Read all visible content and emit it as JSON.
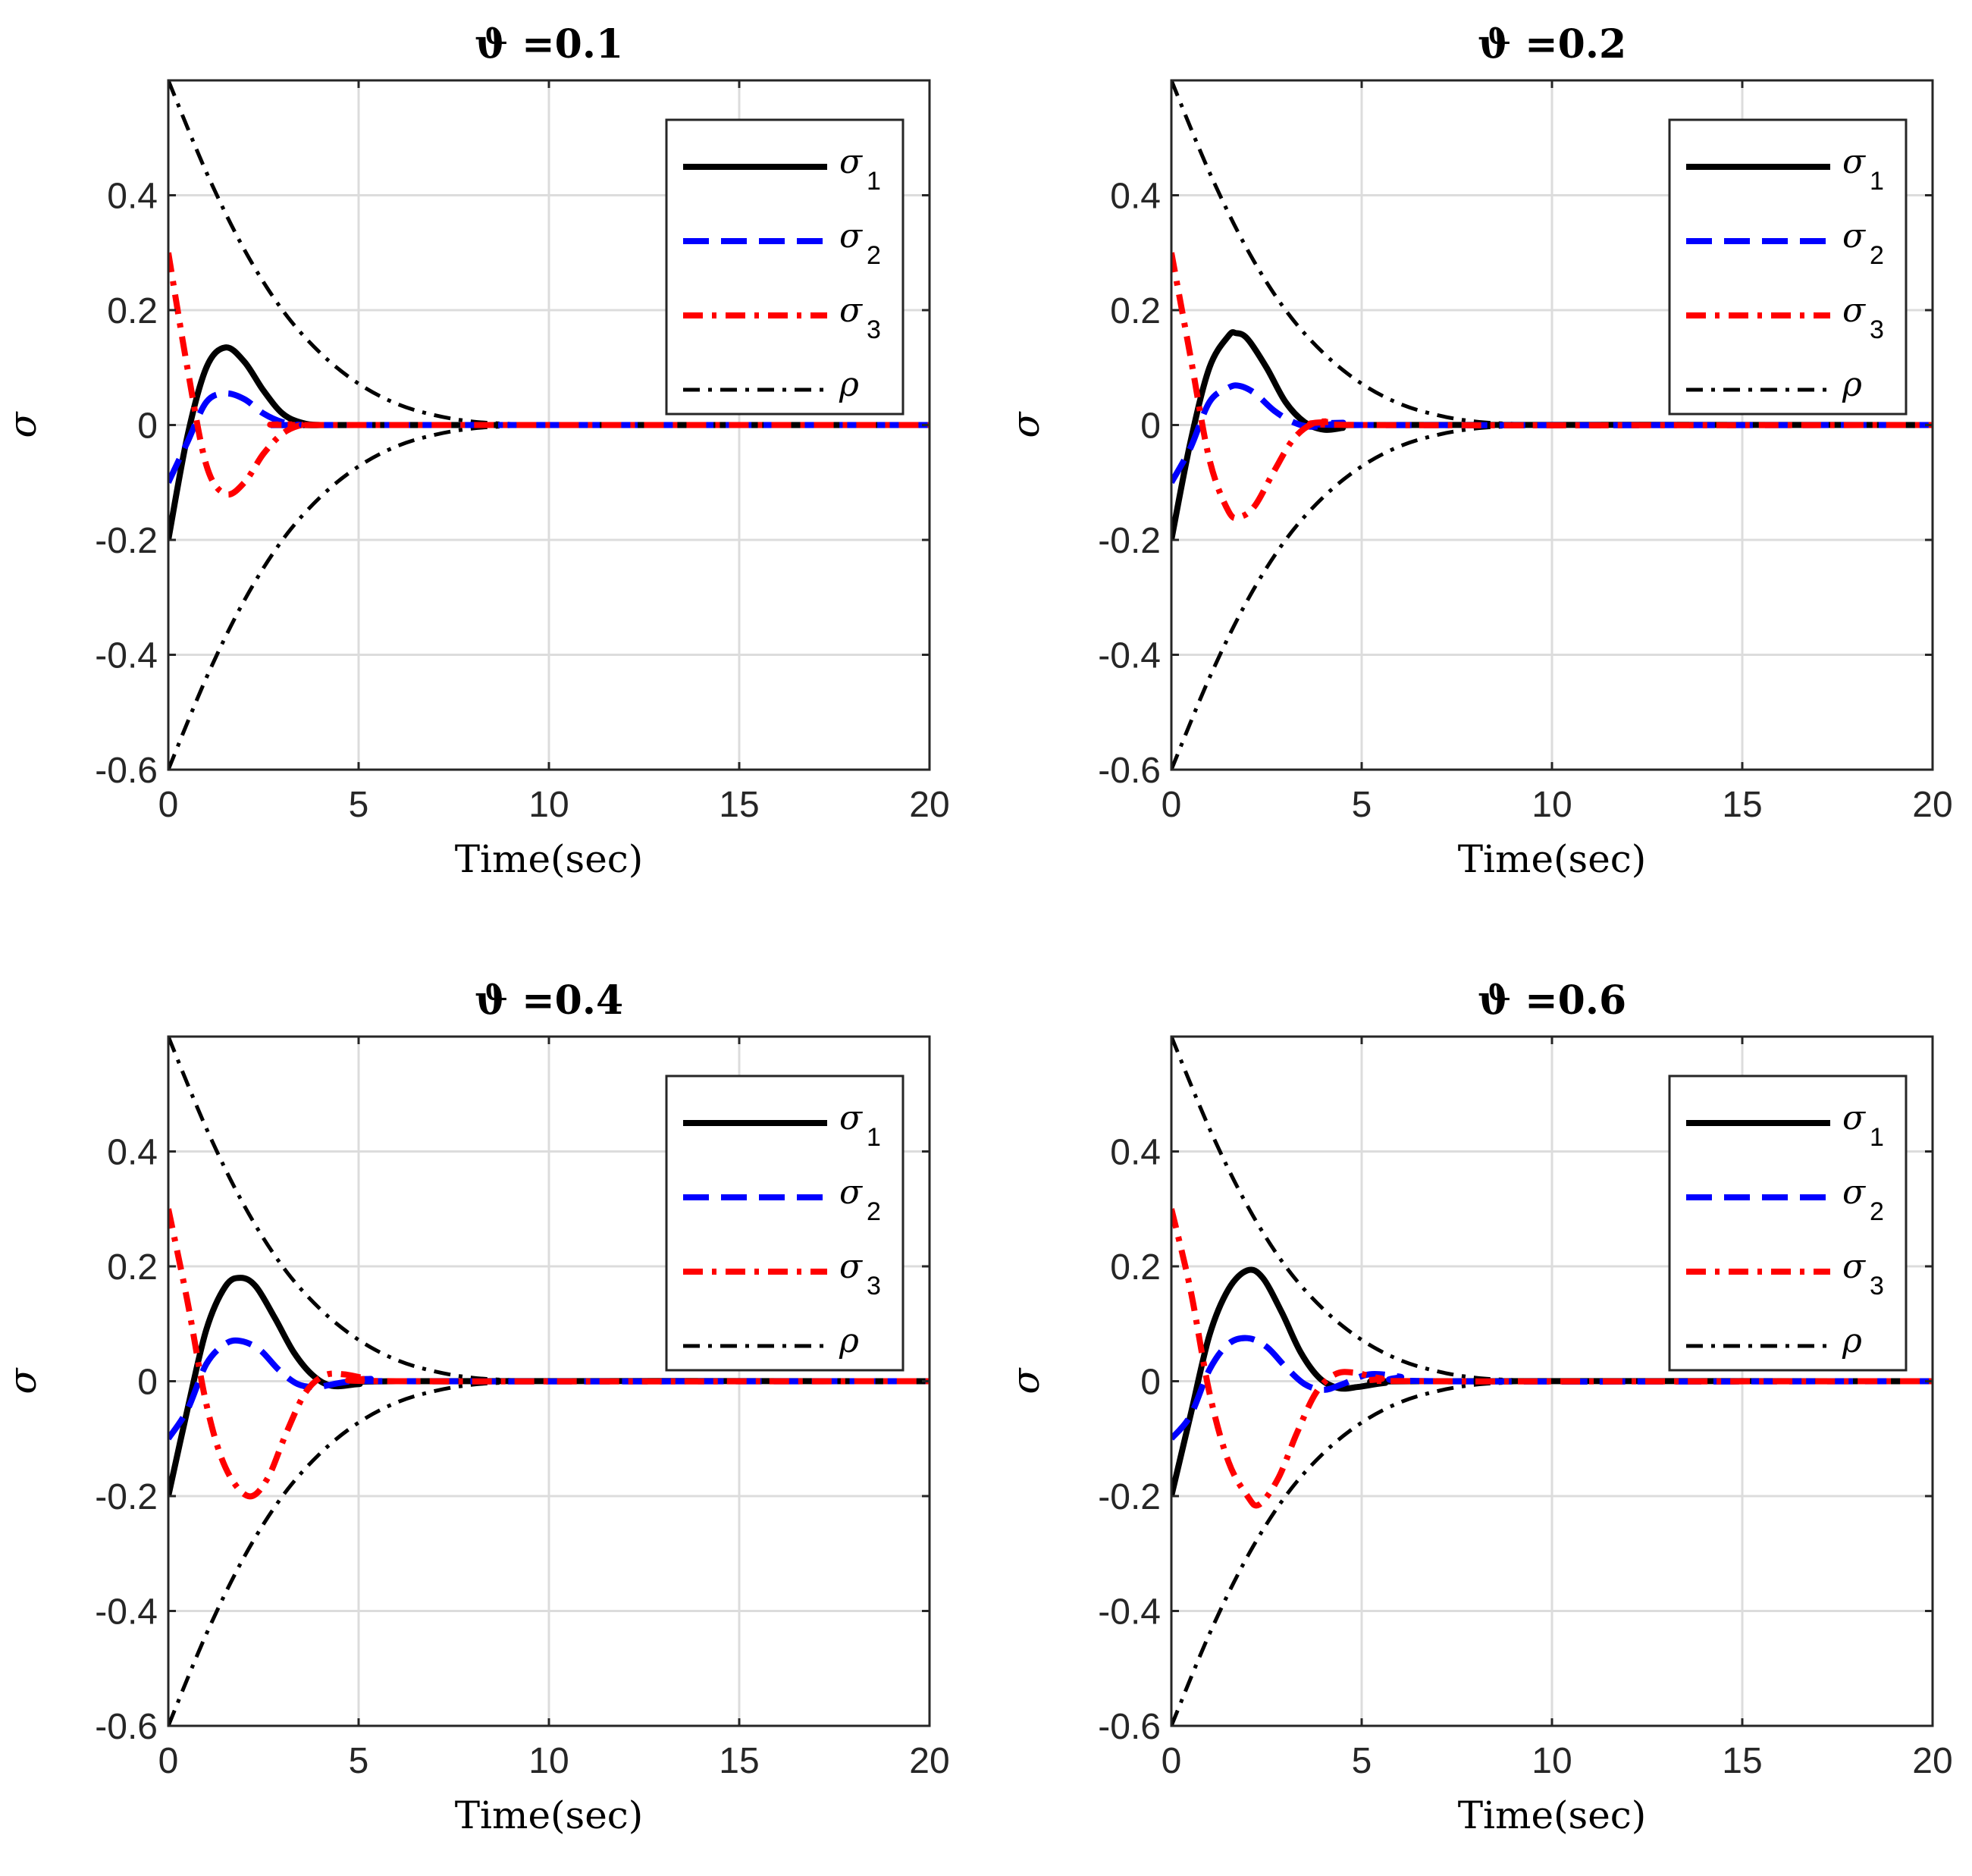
{
  "chart_data": [
    {
      "type": "line",
      "title": "ϑ =0.1",
      "xlabel": "Time(sec)",
      "ylabel": "σ",
      "xlim": [
        0,
        20
      ],
      "ylim": [
        -0.6,
        0.6
      ],
      "xticks": [
        0,
        5,
        10,
        15,
        20
      ],
      "xtick_labels": [
        "0",
        "5",
        "10",
        "15",
        "20"
      ],
      "yticks": [
        -0.6,
        -0.4,
        -0.2,
        0,
        0.2,
        0.4
      ],
      "ytick_labels": [
        "-0.6",
        "-0.4",
        "-0.2",
        "0",
        "0.2",
        "0.4"
      ],
      "grid": true,
      "legend_position": "top-right",
      "series": [
        {
          "name": "σ1",
          "label": "σ",
          "sub": "1",
          "color": "#000000",
          "style": "solid",
          "x": [
            0,
            0.5,
            1,
            1.5,
            2,
            2.5,
            3,
            3.5,
            4,
            5,
            20
          ],
          "y": [
            -0.2,
            -0.02,
            0.1,
            0.135,
            0.11,
            0.06,
            0.02,
            0.004,
            0,
            0,
            0
          ]
        },
        {
          "name": "σ2",
          "label": "σ",
          "sub": "2",
          "color": "#0000ff",
          "style": "dashed",
          "x": [
            0,
            0.5,
            1,
            1.5,
            2,
            2.5,
            3,
            3.5,
            4,
            20
          ],
          "y": [
            -0.1,
            -0.03,
            0.04,
            0.055,
            0.045,
            0.02,
            0.005,
            0,
            0,
            0
          ]
        },
        {
          "name": "σ3",
          "label": "σ",
          "sub": "3",
          "color": "#ff0000",
          "style": "dashdot",
          "x": [
            0,
            0.5,
            1,
            1.5,
            2,
            2.5,
            3,
            3.5,
            4,
            20
          ],
          "y": [
            0.3,
            0.1,
            -0.07,
            -0.12,
            -0.1,
            -0.05,
            -0.015,
            0,
            0,
            0
          ]
        },
        {
          "name": "ρ",
          "label": "ρ",
          "sub": "",
          "color": "#000000",
          "style": "dashdot-thin",
          "x": [
            0,
            1,
            2,
            3,
            4,
            5,
            6,
            7,
            8,
            9,
            10,
            20
          ],
          "y": [
            0.6,
            0.44,
            0.305,
            0.2,
            0.125,
            0.072,
            0.037,
            0.017,
            0.006,
            0.002,
            0,
            0
          ],
          "mirror": true
        }
      ]
    },
    {
      "type": "line",
      "title": "ϑ =0.2",
      "xlabel": "Time(sec)",
      "ylabel": "σ",
      "xlim": [
        0,
        20
      ],
      "ylim": [
        -0.6,
        0.6
      ],
      "xticks": [
        0,
        5,
        10,
        15,
        20
      ],
      "xtick_labels": [
        "0",
        "5",
        "10",
        "15",
        "20"
      ],
      "yticks": [
        -0.6,
        -0.4,
        -0.2,
        0,
        0.2,
        0.4
      ],
      "ytick_labels": [
        "-0.6",
        "-0.4",
        "-0.2",
        "0",
        "0.2",
        "0.4"
      ],
      "grid": true,
      "legend_position": "top-right",
      "series": [
        {
          "name": "σ1",
          "label": "σ",
          "sub": "1",
          "color": "#000000",
          "style": "solid",
          "x": [
            0,
            0.5,
            1,
            1.5,
            1.7,
            2,
            2.5,
            3,
            3.5,
            4,
            4.5,
            5,
            20
          ],
          "y": [
            -0.2,
            -0.03,
            0.1,
            0.155,
            0.16,
            0.15,
            0.1,
            0.04,
            0.005,
            -0.008,
            -0.005,
            0,
            0
          ]
        },
        {
          "name": "σ2",
          "label": "σ",
          "sub": "2",
          "color": "#0000ff",
          "style": "dashed",
          "x": [
            0,
            0.5,
            1,
            1.5,
            1.8,
            2.2,
            2.7,
            3.2,
            3.7,
            4.5,
            5,
            20
          ],
          "y": [
            -0.1,
            -0.04,
            0.04,
            0.065,
            0.068,
            0.055,
            0.025,
            0.005,
            -0.003,
            0.004,
            0,
            0
          ]
        },
        {
          "name": "σ3",
          "label": "σ",
          "sub": "3",
          "color": "#ff0000",
          "style": "dashdot",
          "x": [
            0,
            0.5,
            1,
            1.5,
            1.8,
            2.2,
            2.7,
            3.2,
            3.7,
            4.2,
            5,
            20
          ],
          "y": [
            0.3,
            0.12,
            -0.06,
            -0.15,
            -0.16,
            -0.14,
            -0.08,
            -0.025,
            0.002,
            0.006,
            0,
            0
          ]
        },
        {
          "name": "ρ",
          "label": "ρ",
          "sub": "",
          "color": "#000000",
          "style": "dashdot-thin",
          "x": [
            0,
            1,
            2,
            3,
            4,
            5,
            6,
            7,
            8,
            9,
            10,
            20
          ],
          "y": [
            0.6,
            0.44,
            0.305,
            0.2,
            0.125,
            0.072,
            0.037,
            0.017,
            0.006,
            0.002,
            0,
            0
          ],
          "mirror": true
        }
      ]
    },
    {
      "type": "line",
      "title": "ϑ =0.4",
      "xlabel": "Time(sec)",
      "ylabel": "σ",
      "xlim": [
        0,
        20
      ],
      "ylim": [
        -0.6,
        0.6
      ],
      "xticks": [
        0,
        5,
        10,
        15,
        20
      ],
      "xtick_labels": [
        "0",
        "5",
        "10",
        "15",
        "20"
      ],
      "yticks": [
        -0.6,
        -0.4,
        -0.2,
        0,
        0.2,
        0.4
      ],
      "ytick_labels": [
        "-0.6",
        "-0.4",
        "-0.2",
        "0",
        "0.2",
        "0.4"
      ],
      "grid": true,
      "legend_position": "top-right",
      "series": [
        {
          "name": "σ1",
          "label": "σ",
          "sub": "1",
          "color": "#000000",
          "style": "solid",
          "x": [
            0,
            0.5,
            1,
            1.5,
            1.9,
            2.3,
            2.8,
            3.3,
            3.8,
            4.3,
            5,
            6,
            20
          ],
          "y": [
            -0.2,
            -0.05,
            0.09,
            0.165,
            0.18,
            0.165,
            0.11,
            0.05,
            0.01,
            -0.008,
            -0.005,
            0,
            0
          ]
        },
        {
          "name": "σ2",
          "label": "σ",
          "sub": "2",
          "color": "#0000ff",
          "style": "dashed",
          "x": [
            0,
            0.5,
            1,
            1.5,
            1.9,
            2.4,
            2.9,
            3.4,
            3.9,
            4.5,
            5.3,
            6,
            20
          ],
          "y": [
            -0.1,
            -0.05,
            0.03,
            0.065,
            0.07,
            0.055,
            0.02,
            -0.005,
            -0.01,
            -0.003,
            0.004,
            0,
            0
          ]
        },
        {
          "name": "σ3",
          "label": "σ",
          "sub": "3",
          "color": "#ff0000",
          "style": "dashdot",
          "x": [
            0,
            0.5,
            1,
            1.5,
            2.1,
            2.6,
            3.1,
            3.6,
            4.1,
            4.6,
            5.2,
            6,
            20
          ],
          "y": [
            0.3,
            0.14,
            -0.04,
            -0.15,
            -0.2,
            -0.17,
            -0.09,
            -0.02,
            0.01,
            0.012,
            0.005,
            0,
            0
          ]
        },
        {
          "name": "ρ",
          "label": "ρ",
          "sub": "",
          "color": "#000000",
          "style": "dashdot-thin",
          "x": [
            0,
            1,
            2,
            3,
            4,
            5,
            6,
            7,
            8,
            9,
            10,
            20
          ],
          "y": [
            0.6,
            0.44,
            0.305,
            0.2,
            0.125,
            0.072,
            0.037,
            0.017,
            0.006,
            0.002,
            0,
            0
          ],
          "mirror": true
        }
      ]
    },
    {
      "type": "line",
      "title": "ϑ =0.6",
      "xlabel": "Time(sec)",
      "ylabel": "σ",
      "xlim": [
        0,
        20
      ],
      "ylim": [
        -0.6,
        0.6
      ],
      "xticks": [
        0,
        5,
        10,
        15,
        20
      ],
      "xtick_labels": [
        "0",
        "5",
        "10",
        "15",
        "20"
      ],
      "yticks": [
        -0.6,
        -0.4,
        -0.2,
        0,
        0.2,
        0.4
      ],
      "ytick_labels": [
        "-0.6",
        "-0.4",
        "-0.2",
        "0",
        "0.2",
        "0.4"
      ],
      "grid": true,
      "legend_position": "top-right",
      "series": [
        {
          "name": "σ1",
          "label": "σ",
          "sub": "1",
          "color": "#000000",
          "style": "solid",
          "x": [
            0,
            0.5,
            1,
            1.5,
            2,
            2.4,
            2.9,
            3.4,
            3.9,
            4.4,
            4.9,
            5.6,
            6.5,
            20
          ],
          "y": [
            -0.2,
            -0.06,
            0.08,
            0.16,
            0.193,
            0.18,
            0.12,
            0.05,
            0.005,
            -0.012,
            -0.01,
            -0.003,
            0,
            0
          ]
        },
        {
          "name": "σ2",
          "label": "σ",
          "sub": "2",
          "color": "#0000ff",
          "style": "dashed",
          "x": [
            0,
            0.5,
            1,
            1.5,
            2,
            2.5,
            3,
            3.5,
            4,
            4.5,
            5.2,
            6,
            7,
            20
          ],
          "y": [
            -0.1,
            -0.06,
            0.02,
            0.065,
            0.075,
            0.06,
            0.025,
            -0.005,
            -0.015,
            -0.005,
            0.012,
            0.008,
            0,
            0
          ]
        },
        {
          "name": "σ3",
          "label": "σ",
          "sub": "3",
          "color": "#ff0000",
          "style": "dashdot",
          "x": [
            0,
            0.5,
            1,
            1.5,
            2,
            2.3,
            2.8,
            3.3,
            3.8,
            4.3,
            4.8,
            5.5,
            6.5,
            20
          ],
          "y": [
            0.3,
            0.16,
            -0.02,
            -0.14,
            -0.2,
            -0.215,
            -0.17,
            -0.09,
            -0.02,
            0.012,
            0.015,
            0.005,
            0,
            0
          ]
        },
        {
          "name": "ρ",
          "label": "ρ",
          "sub": "",
          "color": "#000000",
          "style": "dashdot-thin",
          "x": [
            0,
            1,
            2,
            3,
            4,
            5,
            6,
            7,
            8,
            9,
            10,
            20
          ],
          "y": [
            0.6,
            0.44,
            0.305,
            0.2,
            0.125,
            0.072,
            0.037,
            0.017,
            0.006,
            0.002,
            0,
            0
          ],
          "mirror": true
        }
      ]
    }
  ]
}
